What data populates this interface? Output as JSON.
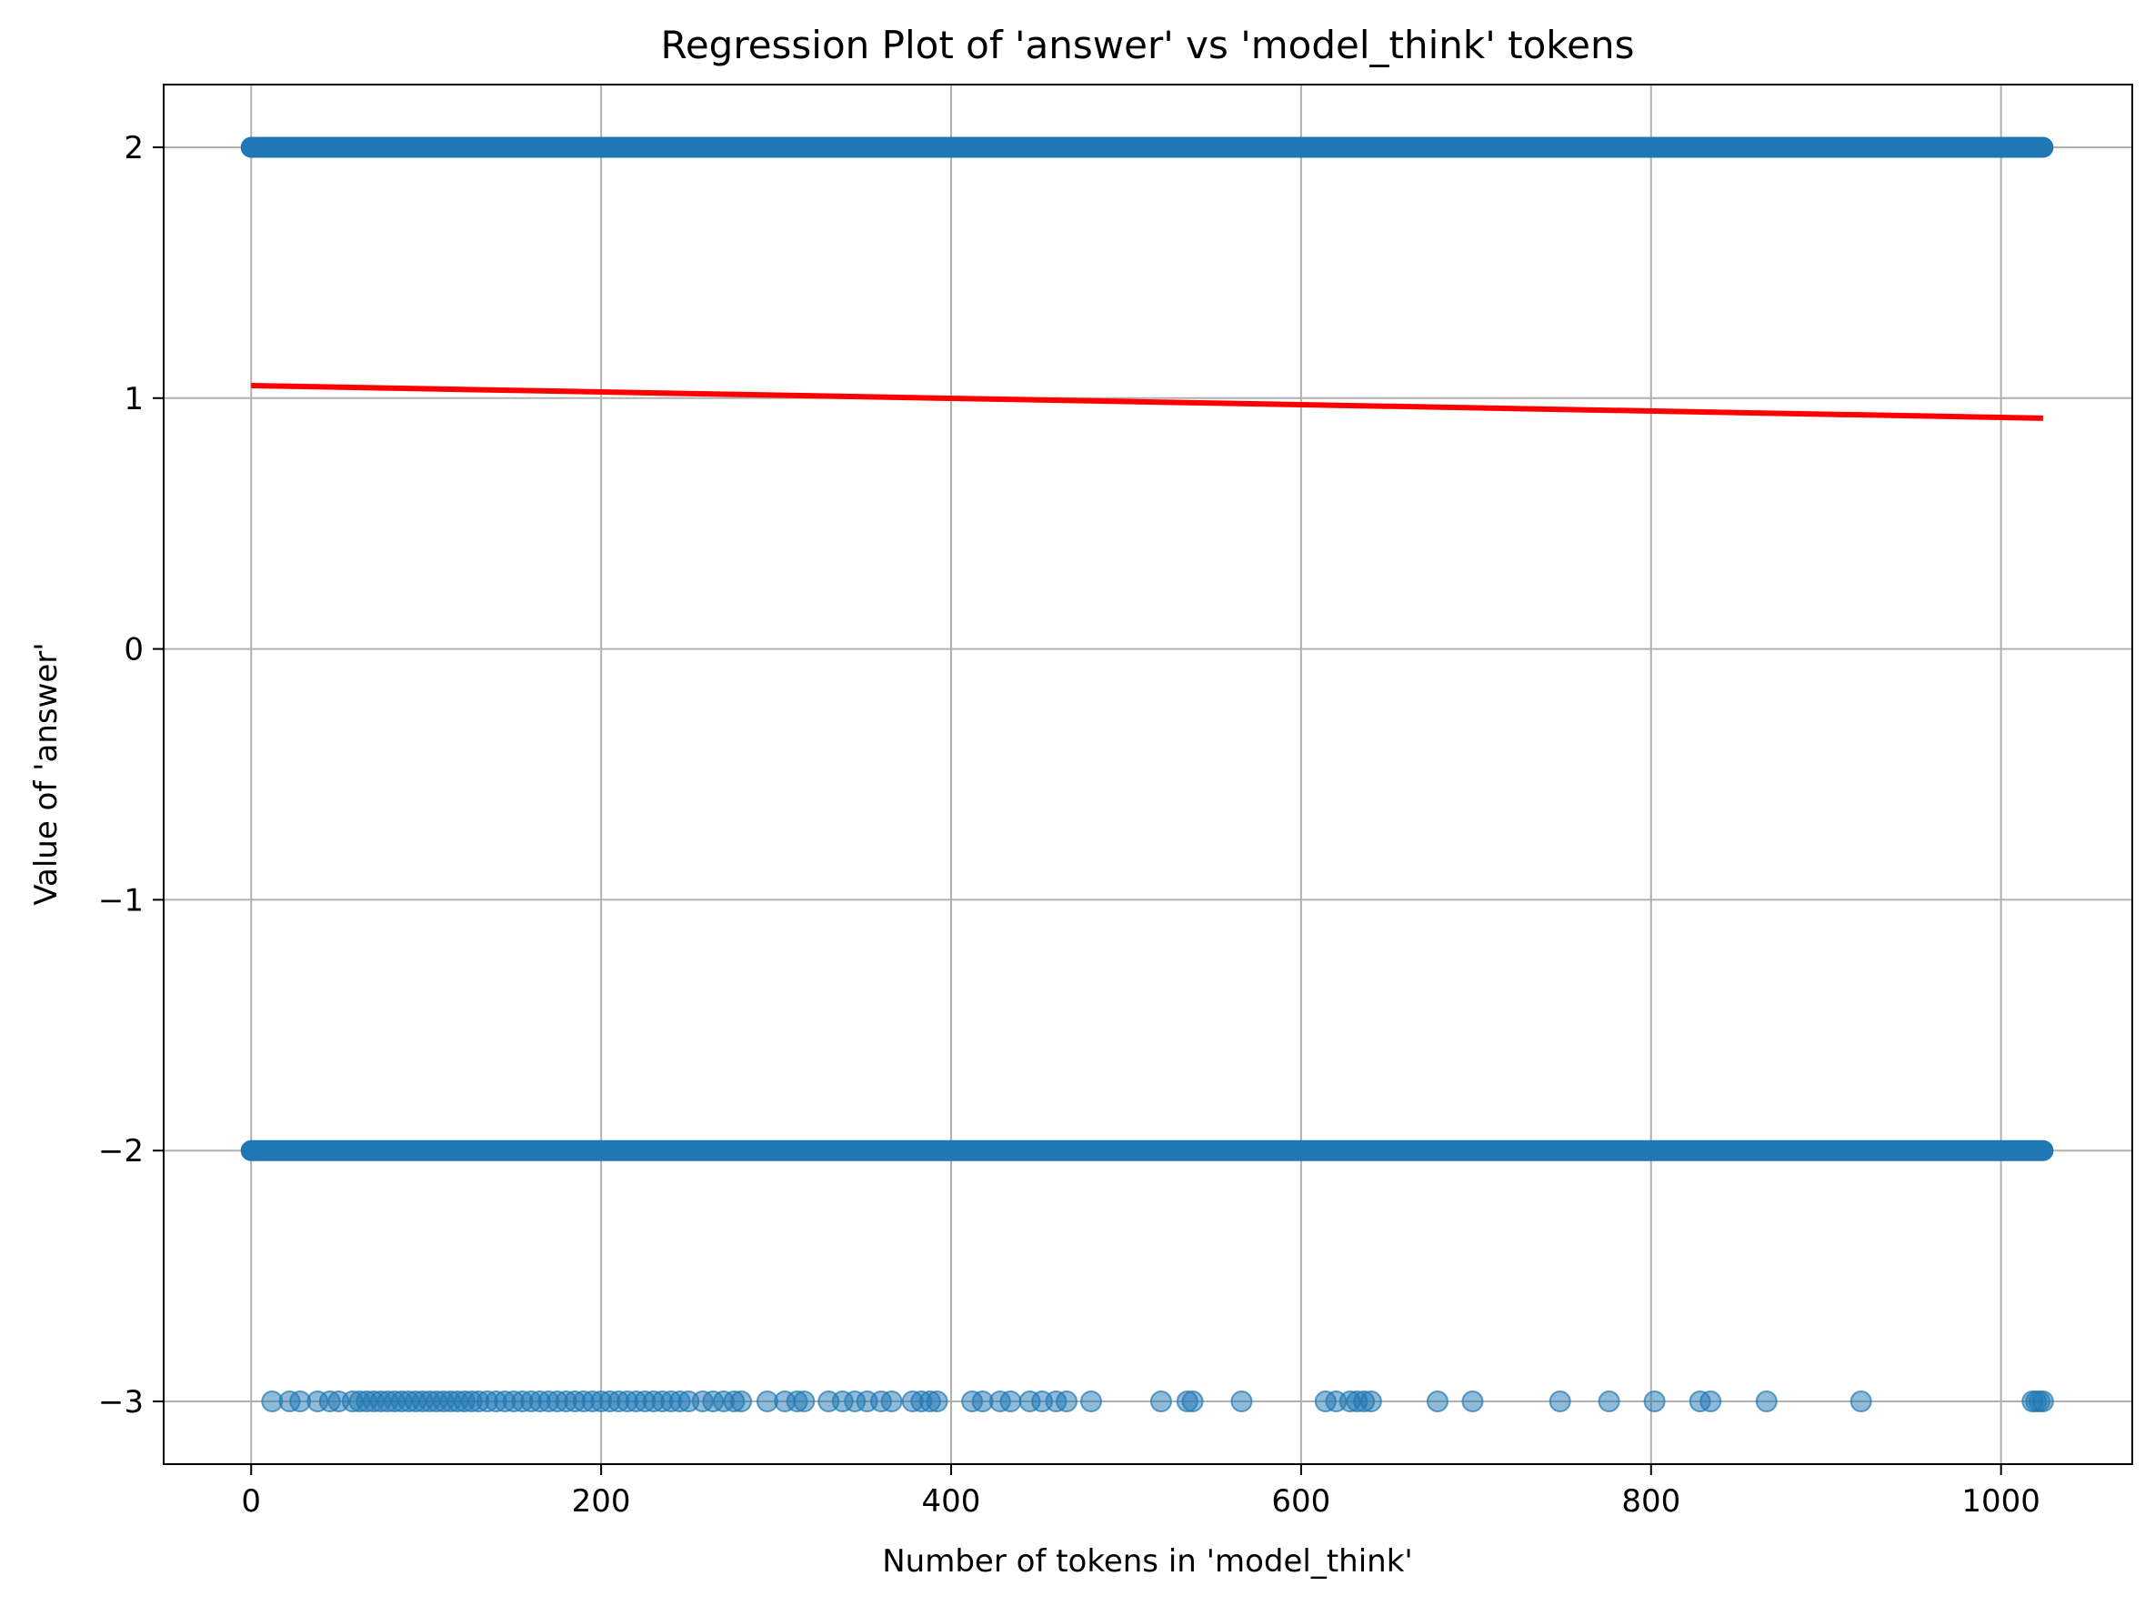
{
  "chart_data": {
    "type": "scatter",
    "title": "Regression Plot of 'answer' vs 'model_think' tokens",
    "xlabel": "Number of tokens in 'model_think'",
    "ylabel": "Value of 'answer'",
    "xlim": [
      -50,
      1075
    ],
    "ylim": [
      -3.25,
      2.25
    ],
    "xticks": [
      0,
      200,
      400,
      600,
      800,
      1000
    ],
    "xtick_labels": [
      "0",
      "200",
      "400",
      "600",
      "800",
      "1000"
    ],
    "yticks": [
      -3,
      -2,
      -1,
      0,
      1,
      2
    ],
    "ytick_labels": [
      "−3",
      "−2",
      "−1",
      "0",
      "1",
      "2"
    ],
    "grid": true,
    "colors": {
      "points": "#1f77b4",
      "regression": "#ff0000"
    },
    "series": [
      {
        "type": "scatter",
        "y": 2,
        "x_range": [
          0,
          1024
        ],
        "dense": true,
        "alpha": 0.5
      },
      {
        "type": "scatter",
        "y": -2,
        "x_range": [
          0,
          1024
        ],
        "dense": true,
        "alpha": 0.5
      },
      {
        "type": "scatter",
        "y": -3,
        "alpha": 0.5,
        "x": [
          12,
          22,
          28,
          38,
          45,
          50,
          58,
          62,
          66,
          70,
          74,
          78,
          82,
          86,
          90,
          94,
          98,
          102,
          106,
          110,
          114,
          118,
          122,
          126,
          130,
          135,
          140,
          145,
          150,
          155,
          160,
          165,
          170,
          175,
          180,
          185,
          190,
          195,
          200,
          205,
          210,
          215,
          220,
          225,
          230,
          235,
          240,
          245,
          250,
          258,
          264,
          270,
          276,
          280,
          295,
          305,
          312,
          316,
          330,
          338,
          345,
          352,
          360,
          366,
          378,
          383,
          388,
          392,
          412,
          418,
          428,
          434,
          445,
          452,
          460,
          466,
          480,
          520,
          535,
          538,
          566,
          614,
          620,
          628,
          632,
          636,
          640,
          678,
          698,
          748,
          776,
          802,
          828,
          834,
          866,
          920,
          1018,
          1020,
          1022,
          1024
        ]
      },
      {
        "type": "line",
        "name": "",
        "x": [
          0,
          1024
        ],
        "y": [
          1.05,
          0.92
        ]
      }
    ]
  }
}
